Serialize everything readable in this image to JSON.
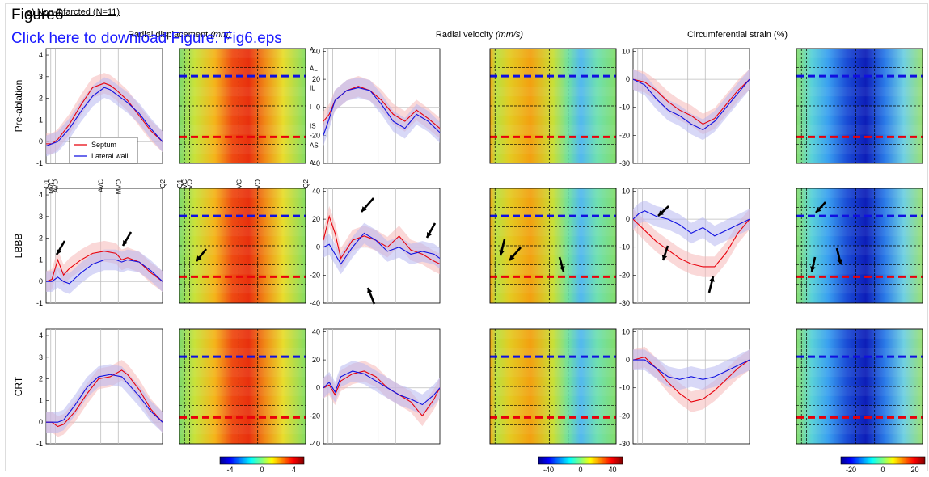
{
  "header": {
    "figure_label": "Figure6",
    "download_link": "Click here to download Figure: Fig6.eps",
    "subtitle": "a) Non-infarcted (N=11)"
  },
  "columns": {
    "displacement_title": "Radial displacement",
    "displacement_unit": "(mm)",
    "velocity_title": "Radial velocity",
    "velocity_unit": "(mm/s)",
    "strain_title": "Circumferential strain (%)"
  },
  "rows": [
    "Pre-ablation",
    "LBBB",
    "CRT"
  ],
  "legend": {
    "septum": "Septum",
    "lateral": "Lateral wall"
  },
  "segments": [
    "A",
    "AL",
    "IL",
    "I",
    "IS",
    "AS",
    "A"
  ],
  "timing_labels": [
    "Q1",
    "MVC",
    "AVO",
    "AVC",
    "MVO",
    "Q2"
  ],
  "colors": {
    "septum": "#e8000b",
    "lateral": "#1010e0",
    "septum_band": "#f6b8b8",
    "lateral_band": "#b8b8f0"
  },
  "colorbars": [
    {
      "ticks": [
        "-4",
        "0",
        "4"
      ]
    },
    {
      "ticks": [
        "-40",
        "0",
        "40"
      ]
    },
    {
      "ticks": [
        "-20",
        "0",
        "20"
      ]
    }
  ],
  "chart_data": [
    {
      "type": "line",
      "panel": "Pre-ablation displacement",
      "ylim": [
        -1,
        4.3
      ],
      "yticks": [
        "-1",
        "0",
        "1",
        "2",
        "3",
        "4"
      ],
      "x": [
        0,
        0.05,
        0.1,
        0.2,
        0.3,
        0.4,
        0.5,
        0.55,
        0.6,
        0.7,
        0.8,
        0.9,
        1.0
      ],
      "series": [
        {
          "name": "Septum",
          "values": [
            -0.1,
            -0.1,
            0.1,
            0.8,
            1.7,
            2.5,
            2.7,
            2.6,
            2.4,
            1.9,
            1.2,
            0.5,
            0.0
          ]
        },
        {
          "name": "Lateral wall",
          "values": [
            -0.2,
            -0.1,
            0.0,
            0.6,
            1.4,
            2.1,
            2.5,
            2.4,
            2.2,
            1.8,
            1.3,
            0.6,
            0.0
          ]
        }
      ]
    },
    {
      "type": "line",
      "panel": "LBBB displacement",
      "ylim": [
        -1,
        4.3
      ],
      "yticks": [
        "-1",
        "0",
        "1",
        "2",
        "3",
        "4"
      ],
      "x": [
        0,
        0.05,
        0.1,
        0.15,
        0.2,
        0.3,
        0.4,
        0.5,
        0.6,
        0.65,
        0.7,
        0.8,
        0.9,
        1.0
      ],
      "series": [
        {
          "name": "Septum",
          "values": [
            0.0,
            0.1,
            1.0,
            0.3,
            0.6,
            1.0,
            1.3,
            1.4,
            1.3,
            1.0,
            1.1,
            0.9,
            0.4,
            0.0
          ]
        },
        {
          "name": "Lateral wall",
          "values": [
            0.0,
            0.0,
            0.2,
            0.0,
            -0.1,
            0.4,
            0.8,
            1.0,
            1.0,
            0.9,
            1.0,
            0.9,
            0.5,
            0.0
          ]
        }
      ]
    },
    {
      "type": "line",
      "panel": "CRT displacement",
      "ylim": [
        -1,
        4.3
      ],
      "yticks": [
        "-1",
        "0",
        "1",
        "2",
        "3",
        "4"
      ],
      "x": [
        0,
        0.05,
        0.1,
        0.15,
        0.25,
        0.35,
        0.45,
        0.55,
        0.65,
        0.7,
        0.8,
        0.9,
        1.0
      ],
      "series": [
        {
          "name": "Septum",
          "values": [
            0.0,
            0.0,
            -0.2,
            -0.1,
            0.5,
            1.3,
            2.0,
            2.1,
            2.4,
            2.2,
            1.5,
            0.6,
            0.0
          ]
        },
        {
          "name": "Lateral wall",
          "values": [
            0.0,
            0.0,
            0.0,
            0.1,
            0.8,
            1.6,
            2.1,
            2.2,
            2.1,
            1.8,
            1.2,
            0.5,
            0.0
          ]
        }
      ]
    },
    {
      "type": "line",
      "panel": "Pre-ablation velocity",
      "ylim": [
        -40,
        42
      ],
      "yticks": [
        "-40",
        "-20",
        "0",
        "20",
        "40"
      ],
      "x": [
        0,
        0.05,
        0.1,
        0.2,
        0.3,
        0.4,
        0.5,
        0.6,
        0.7,
        0.8,
        0.9,
        1.0
      ],
      "series": [
        {
          "name": "Septum",
          "values": [
            -10,
            -5,
            5,
            12,
            15,
            12,
            5,
            -5,
            -10,
            -2,
            -8,
            -15
          ]
        },
        {
          "name": "Lateral wall",
          "values": [
            -20,
            -8,
            5,
            12,
            14,
            12,
            2,
            -10,
            -15,
            -5,
            -10,
            -18
          ]
        }
      ]
    },
    {
      "type": "line",
      "panel": "LBBB velocity",
      "ylim": [
        -40,
        42
      ],
      "yticks": [
        "-40",
        "-20",
        "0",
        "20",
        "40"
      ],
      "x": [
        0,
        0.05,
        0.1,
        0.15,
        0.25,
        0.35,
        0.45,
        0.55,
        0.65,
        0.75,
        0.85,
        0.95,
        1.0
      ],
      "series": [
        {
          "name": "Septum",
          "values": [
            5,
            22,
            10,
            -8,
            5,
            8,
            5,
            0,
            8,
            -2,
            -5,
            -10,
            -12
          ]
        },
        {
          "name": "Lateral wall",
          "values": [
            0,
            2,
            -5,
            -12,
            0,
            10,
            5,
            -3,
            0,
            -5,
            -3,
            -5,
            -8
          ]
        }
      ]
    },
    {
      "type": "line",
      "panel": "CRT velocity",
      "ylim": [
        -40,
        42
      ],
      "yticks": [
        "-40",
        "-20",
        "0",
        "20",
        "40"
      ],
      "x": [
        0,
        0.05,
        0.1,
        0.15,
        0.25,
        0.35,
        0.45,
        0.55,
        0.65,
        0.75,
        0.85,
        0.95,
        1.0
      ],
      "series": [
        {
          "name": "Septum",
          "values": [
            0,
            2,
            -5,
            5,
            10,
            12,
            8,
            0,
            -5,
            -10,
            -20,
            -8,
            0
          ]
        },
        {
          "name": "Lateral wall",
          "values": [
            0,
            4,
            -3,
            8,
            12,
            10,
            5,
            0,
            -5,
            -8,
            -12,
            -5,
            0
          ]
        }
      ]
    },
    {
      "type": "line",
      "panel": "Pre-ablation strain",
      "ylim": [
        -30,
        11
      ],
      "yticks": [
        "-30",
        "-20",
        "-10",
        "0",
        "10"
      ],
      "x": [
        0,
        0.1,
        0.2,
        0.3,
        0.4,
        0.5,
        0.6,
        0.7,
        0.8,
        0.9,
        1.0
      ],
      "series": [
        {
          "name": "Septum",
          "values": [
            0,
            -1,
            -4,
            -8,
            -11,
            -13,
            -16,
            -14,
            -9,
            -4,
            0
          ]
        },
        {
          "name": "Lateral wall",
          "values": [
            0,
            -2,
            -7,
            -11,
            -13,
            -16,
            -18,
            -15,
            -10,
            -5,
            0
          ]
        }
      ]
    },
    {
      "type": "line",
      "panel": "LBBB strain",
      "ylim": [
        -30,
        11
      ],
      "yticks": [
        "-30",
        "-20",
        "-10",
        "0",
        "10"
      ],
      "x": [
        0,
        0.05,
        0.1,
        0.2,
        0.3,
        0.4,
        0.5,
        0.6,
        0.7,
        0.8,
        0.9,
        1.0
      ],
      "series": [
        {
          "name": "Septum",
          "values": [
            0,
            -2,
            -4,
            -8,
            -11,
            -14,
            -16,
            -17,
            -17,
            -12,
            -5,
            0
          ]
        },
        {
          "name": "Lateral wall",
          "values": [
            0,
            2,
            3,
            1,
            0,
            -2,
            -5,
            -3,
            -6,
            -4,
            -2,
            0
          ]
        }
      ]
    },
    {
      "type": "line",
      "panel": "CRT strain",
      "ylim": [
        -30,
        11
      ],
      "yticks": [
        "-30",
        "-20",
        "-10",
        "0",
        "10"
      ],
      "x": [
        0,
        0.1,
        0.2,
        0.3,
        0.4,
        0.5,
        0.6,
        0.7,
        0.8,
        0.9,
        1.0
      ],
      "series": [
        {
          "name": "Septum",
          "values": [
            0,
            1,
            -3,
            -8,
            -12,
            -15,
            -14,
            -11,
            -7,
            -3,
            0
          ]
        },
        {
          "name": "Lateral wall",
          "values": [
            0,
            0,
            -3,
            -6,
            -7,
            -6,
            -7,
            -6,
            -4,
            -2,
            0
          ]
        }
      ]
    }
  ]
}
